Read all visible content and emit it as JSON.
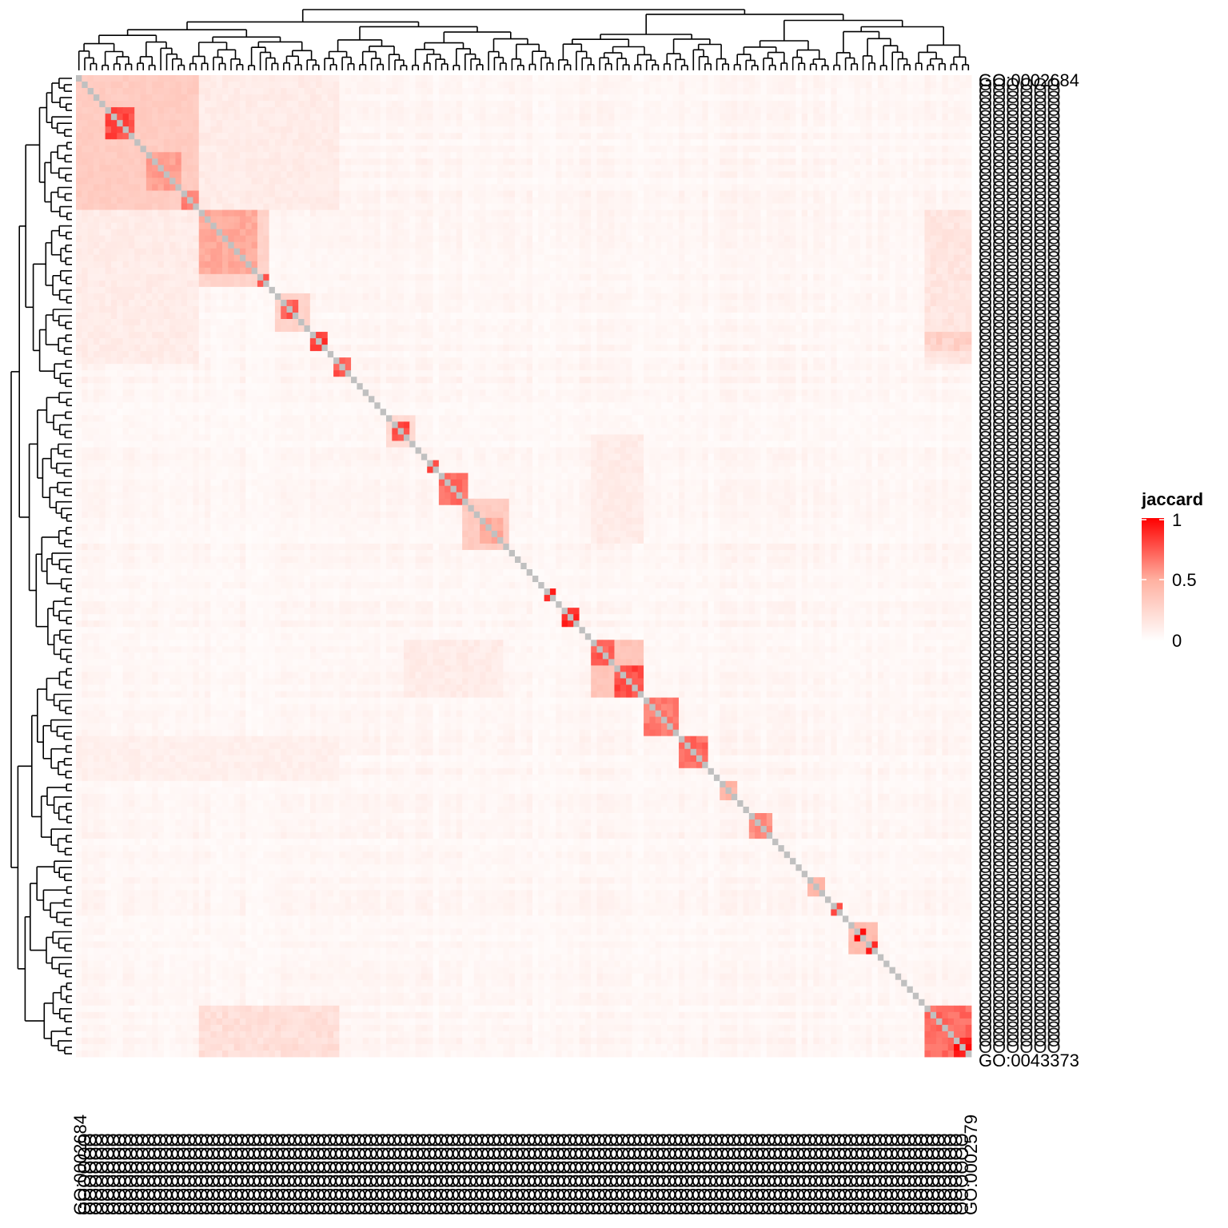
{
  "chart_data": {
    "type": "heatmap",
    "title": "",
    "xlabel": "",
    "ylabel": "",
    "n_terms": 153,
    "row_label_start": "GO:0002684",
    "row_label_end": "GO:0043373",
    "col_label_start": "GO:0002684",
    "col_label_end": "GO:0002579",
    "diagonal_color": "#c0c0c0",
    "color_scale": {
      "low": "#ffffff",
      "mid": "#ffb0a0",
      "high": "#ff0000",
      "min": 0,
      "mid_value": 0.5,
      "max": 1
    },
    "dendrogram": {
      "rows": true,
      "columns": true
    },
    "blocks": [
      {
        "start": 0,
        "end": 21,
        "value": 0.35,
        "note": ""
      },
      {
        "start": 5,
        "end": 10,
        "value": 0.85
      },
      {
        "start": 12,
        "end": 18,
        "value": 0.6
      },
      {
        "start": 18,
        "end": 21,
        "value": 0.7
      },
      {
        "start": 21,
        "end": 33,
        "value": 0.3
      },
      {
        "start": 21,
        "end": 31,
        "value": 0.55
      },
      {
        "start": 31,
        "end": 33,
        "value": 0.85
      },
      {
        "start": 34,
        "end": 40,
        "value": 0.3
      },
      {
        "start": 35,
        "end": 38,
        "value": 0.8
      },
      {
        "start": 40,
        "end": 43,
        "value": 0.9
      },
      {
        "start": 44,
        "end": 47,
        "value": 0.8
      },
      {
        "start": 53,
        "end": 58,
        "value": 0.25
      },
      {
        "start": 54,
        "end": 57,
        "value": 0.85
      },
      {
        "start": 60,
        "end": 62,
        "value": 0.9
      },
      {
        "start": 62,
        "end": 67,
        "value": 0.75
      },
      {
        "start": 66,
        "end": 74,
        "value": 0.35
      },
      {
        "start": 69,
        "end": 73,
        "value": 0.55
      },
      {
        "start": 80,
        "end": 82,
        "value": 0.95
      },
      {
        "start": 83,
        "end": 86,
        "value": 0.95
      },
      {
        "start": 88,
        "end": 92,
        "value": 0.8
      },
      {
        "start": 88,
        "end": 97,
        "value": 0.4
      },
      {
        "start": 92,
        "end": 97,
        "value": 0.85
      },
      {
        "start": 97,
        "end": 103,
        "value": 0.7
      },
      {
        "start": 103,
        "end": 108,
        "value": 0.75
      },
      {
        "start": 110,
        "end": 113,
        "value": 0.5
      },
      {
        "start": 115,
        "end": 119,
        "value": 0.65
      },
      {
        "start": 125,
        "end": 128,
        "value": 0.5
      },
      {
        "start": 129,
        "end": 131,
        "value": 0.85
      },
      {
        "start": 132,
        "end": 137,
        "value": 0.45
      },
      {
        "start": 133,
        "end": 135,
        "value": 1.0
      },
      {
        "start": 135,
        "end": 137,
        "value": 1.0
      },
      {
        "start": 145,
        "end": 153,
        "value": 0.75
      },
      {
        "start": 150,
        "end": 153,
        "value": 1.0
      }
    ],
    "off_diagonal": [
      {
        "rows": [
          145,
          153
        ],
        "cols": [
          21,
          45
        ],
        "value": 0.25
      },
      {
        "rows": [
          21,
          45
        ],
        "cols": [
          145,
          153
        ],
        "value": 0.2
      },
      {
        "rows": [
          40,
          43
        ],
        "cols": [
          145,
          153
        ],
        "value": 0.35
      },
      {
        "rows": [
          0,
          21
        ],
        "cols": [
          21,
          45
        ],
        "value": 0.15
      },
      {
        "rows": [
          21,
          45
        ],
        "cols": [
          0,
          21
        ],
        "value": 0.15
      },
      {
        "rows": [
          88,
          97
        ],
        "cols": [
          56,
          73
        ],
        "value": 0.15
      },
      {
        "rows": [
          56,
          73
        ],
        "cols": [
          88,
          97
        ],
        "value": 0.15
      },
      {
        "rows": [
          103,
          110
        ],
        "cols": [
          0,
          45
        ],
        "value": 0.12
      }
    ]
  },
  "legend": {
    "title": "jaccard",
    "ticks": [
      "1",
      "0.5",
      "0"
    ]
  }
}
